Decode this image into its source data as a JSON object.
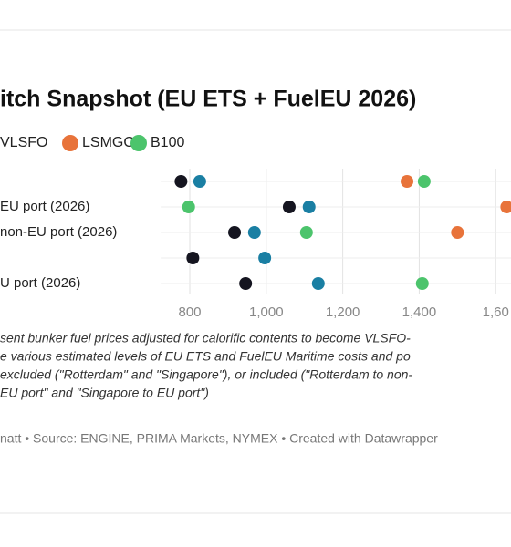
{
  "chart_data": {
    "type": "dot",
    "title": "itch Snapshot (EU ETS + FuelEU 2026)",
    "categories": [
      null,
      "EU port (2026)",
      "non-EU port (2026)",
      null,
      "U port (2026)"
    ],
    "series": [
      {
        "name": null,
        "color": "#151520",
        "values": [
          777,
          1060,
          917,
          808,
          946
        ]
      },
      {
        "name": "VLSFO",
        "color": "#1a7fa3",
        "values": [
          826,
          1112,
          969,
          996,
          1136
        ]
      },
      {
        "name": "LSMGO",
        "color": "#e8733a",
        "values": [
          1368,
          1629,
          1500,
          null,
          null
        ]
      },
      {
        "name": "B100",
        "color": "#4cc46c",
        "values": [
          1413,
          797,
          1105,
          null,
          1408
        ]
      }
    ],
    "xlim": [
      700,
      1640
    ],
    "xticks": [
      800,
      {
        "value": 1000,
        "label": "1,000"
      },
      {
        "value": 1200,
        "label": "1,200"
      },
      {
        "value": 1400,
        "label": "1,400"
      },
      {
        "value": 1600,
        "label": "1,60"
      }
    ],
    "grid": true,
    "notes": [
      "sent bunker fuel prices adjusted for calorific contents to become VLSFO-",
      "e various estimated levels of EU ETS and FuelEU Maritime costs and po",
      "excluded (\"Rotterdam\" and \"Singapore\"), or included (\"Rotterdam to non-",
      "EU port\" and \"Singapore to EU port\")"
    ],
    "credit": "natt • Source: ENGINE, PRIMA Markets, NYMEX • Created with Datawrapper"
  }
}
